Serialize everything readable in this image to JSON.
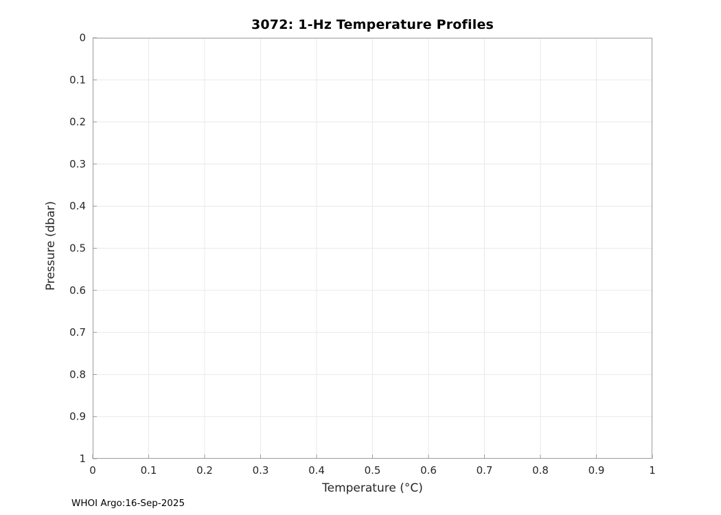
{
  "chart_data": {
    "type": "line",
    "title": "3072: 1-Hz Temperature Profiles",
    "xlabel": "Temperature (°C)",
    "ylabel": "Pressure (dbar)",
    "xlim": [
      0,
      1
    ],
    "ylim": [
      0,
      1
    ],
    "y_axis_direction": "reversed",
    "x_ticks": [
      0,
      0.1,
      0.2,
      0.3,
      0.4,
      0.5,
      0.6,
      0.7,
      0.8,
      0.9,
      1
    ],
    "y_ticks": [
      0,
      0.1,
      0.2,
      0.3,
      0.4,
      0.5,
      0.6,
      0.7,
      0.8,
      0.9,
      1
    ],
    "grid": true,
    "legend": "none",
    "series": []
  },
  "footer": {
    "text": "WHOI Argo:16-Sep-2025"
  },
  "colors": {
    "background": "#ffffff",
    "grid": "#e8e8e8",
    "axis": "#999999",
    "tick_mark": "#999999",
    "tick_label": "#262626",
    "title": "#000000"
  }
}
